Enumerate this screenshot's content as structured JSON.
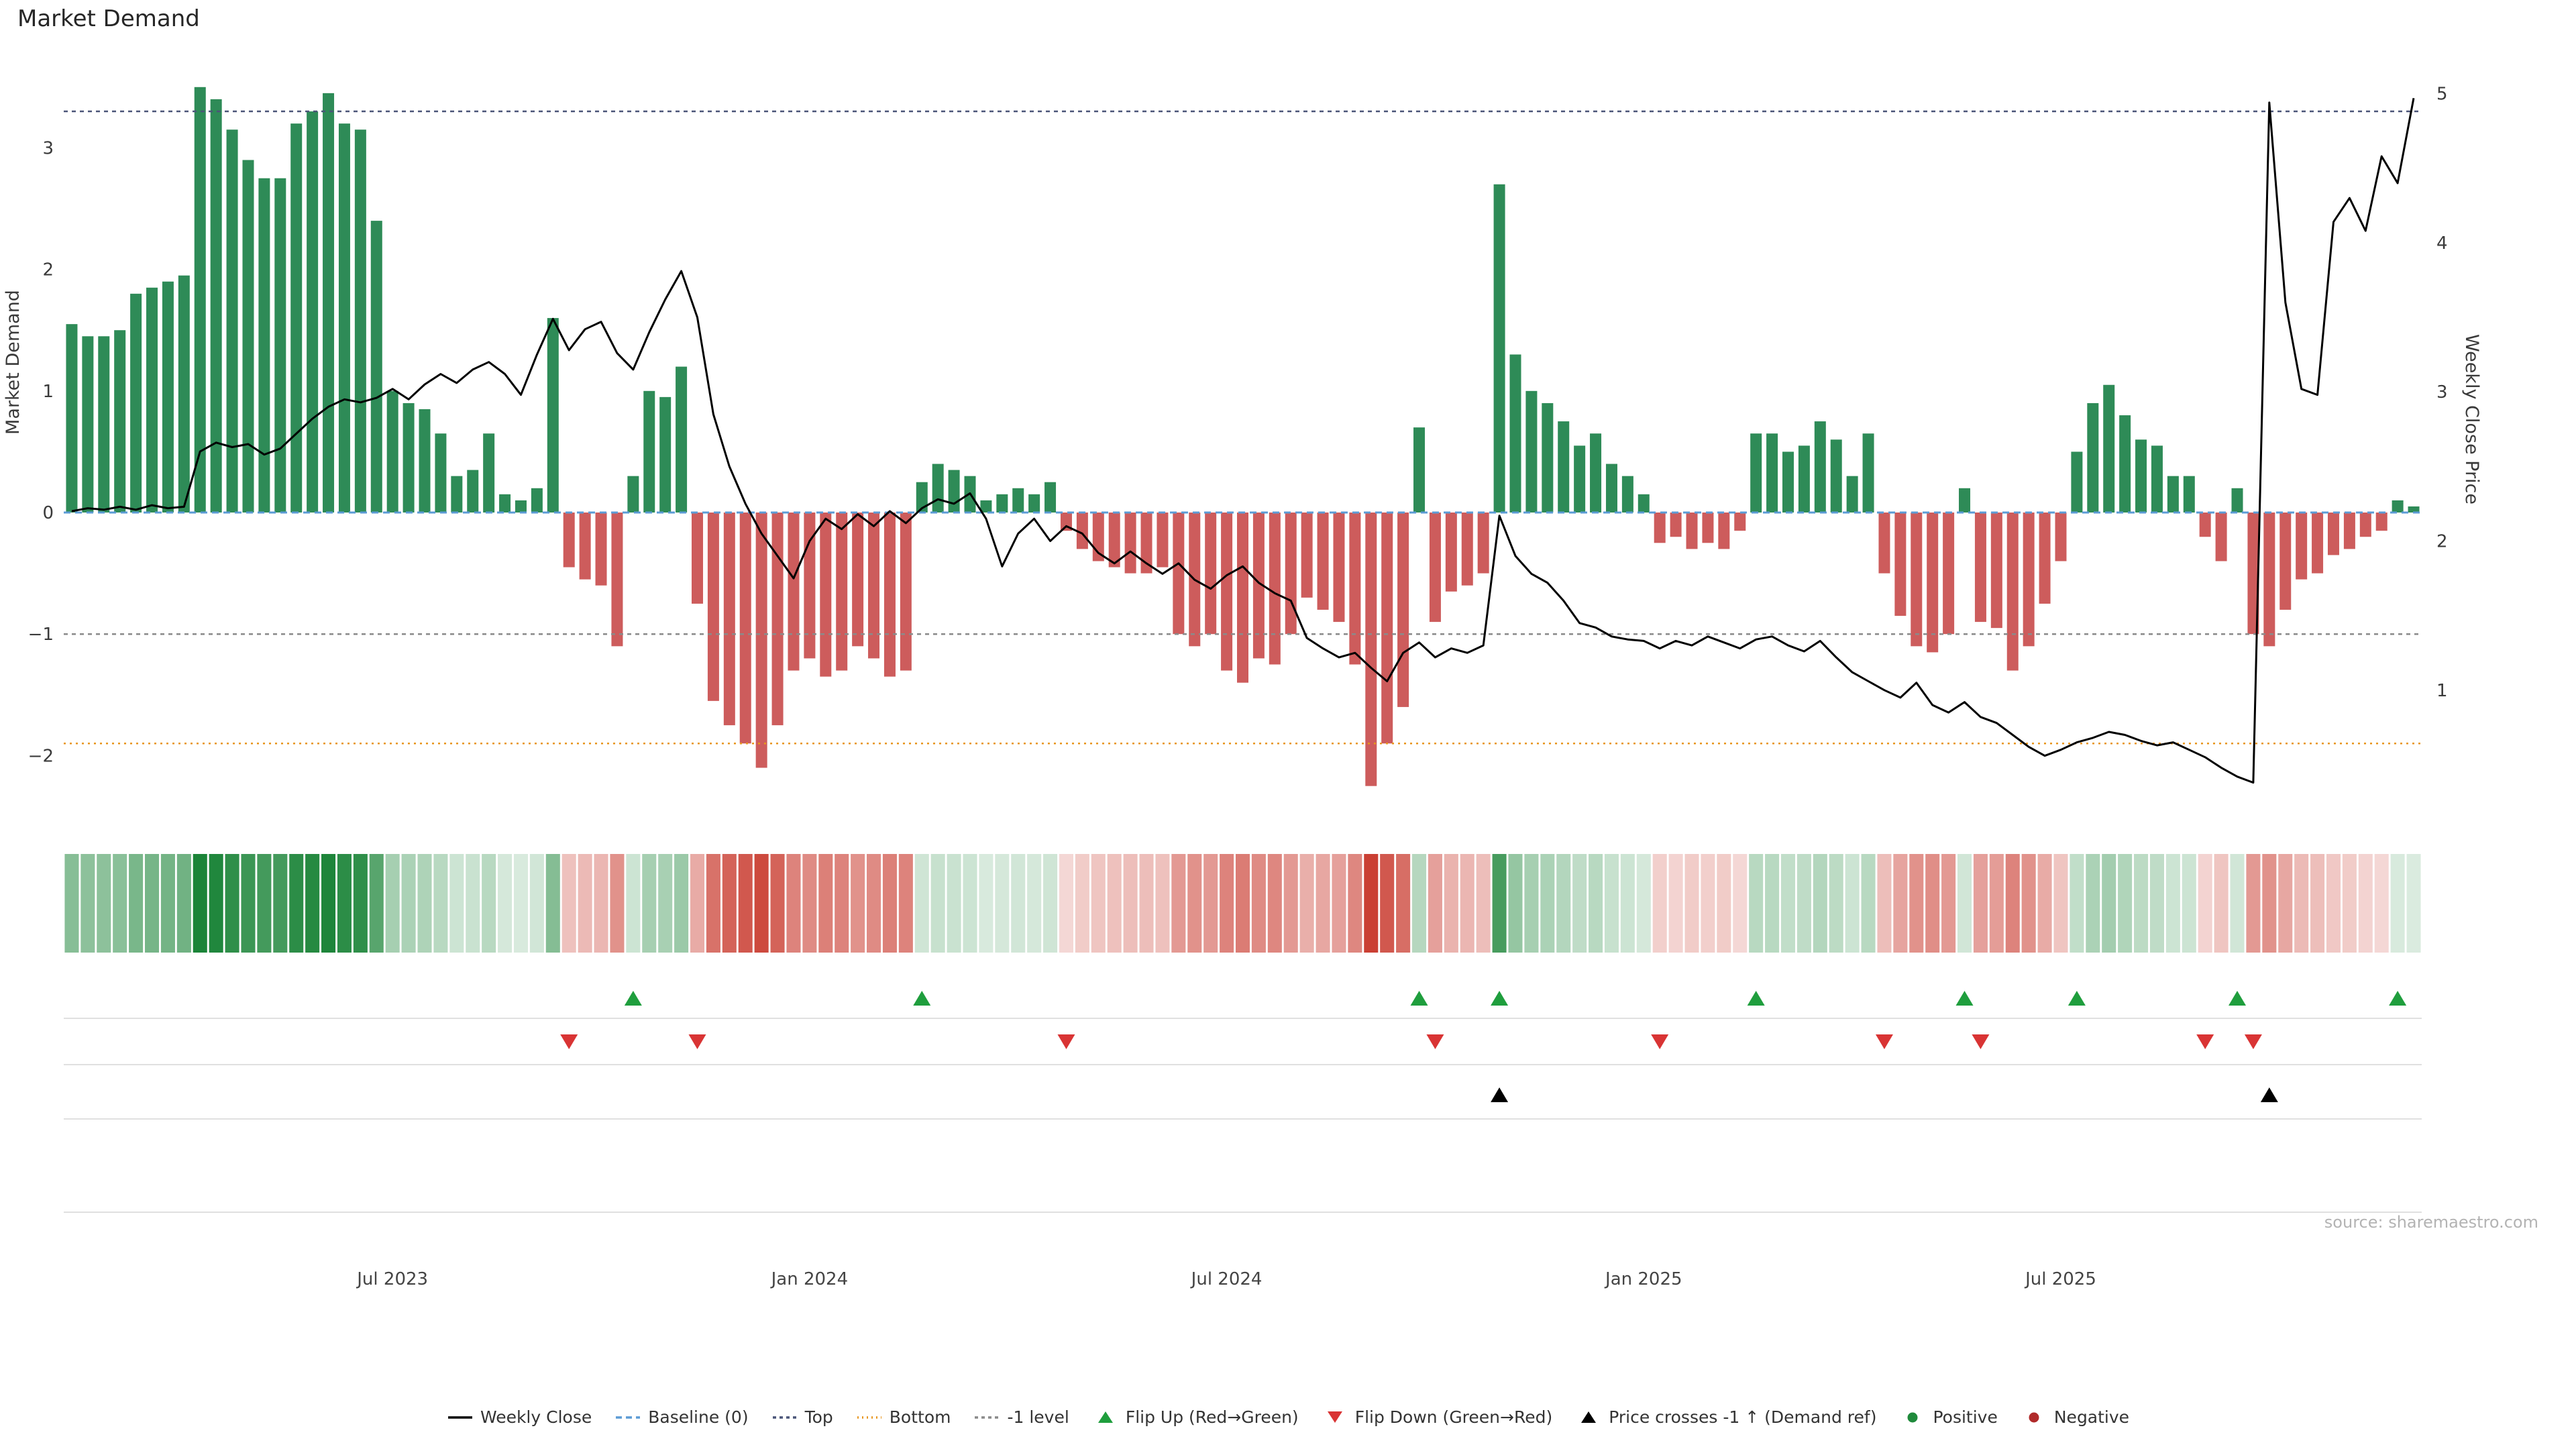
{
  "title": "Market Demand",
  "source_text": "source: sharemaestro.com",
  "axes": {
    "left_label": "Market Demand",
    "right_label": "Weekly Close Price",
    "left_ticks": [
      3,
      2,
      1,
      0,
      -1,
      -2
    ],
    "right_ticks": [
      5,
      4,
      3,
      2,
      1
    ],
    "x_tick_labels": [
      "Jul 2023",
      "Jan 2024",
      "Jul 2024",
      "Jan 2025",
      "Jul 2025"
    ],
    "x_tick_indices": [
      20,
      46,
      72,
      98,
      124
    ]
  },
  "colors": {
    "bar_positive": "#2e8b57",
    "bar_negative": "#cd5c5c",
    "price_line": "#000000",
    "baseline": "#5b9bd5",
    "top_line": "#4a5578",
    "bottom_line": "#e8961e",
    "minus_one_line": "#8a8a8a",
    "flip_up": "#1f9e3d",
    "flip_down": "#d93434",
    "price_cross": "#000000",
    "heat_pos_rgb": "27,132,56",
    "heat_neg_rgb": "201,59,47"
  },
  "chart_data": {
    "type": "bar+line",
    "x_unit": "weeks",
    "n_points": 147,
    "left_axis": {
      "label": "Market Demand",
      "ticks": [
        3,
        2,
        1,
        0,
        -1,
        -2
      ],
      "range": [
        -2.6,
        3.72
      ]
    },
    "right_axis": {
      "label": "Weekly Close Price",
      "ticks": [
        5,
        4,
        3,
        2,
        1
      ],
      "range": [
        0.0,
        5.05
      ]
    },
    "ref_lines": [
      {
        "name": "baseline",
        "label": "Baseline (0)",
        "value": 0,
        "axis": "left",
        "style": "dashed",
        "color": "#5b9bd5"
      },
      {
        "name": "top",
        "label": "Top",
        "value": 3.3,
        "axis": "left",
        "style": "dashed",
        "color": "#4a5578"
      },
      {
        "name": "bottom",
        "label": "Bottom",
        "value": -1.9,
        "axis": "left",
        "style": "dotted",
        "color": "#e8961e"
      },
      {
        "name": "minus_one",
        "label": "-1 level",
        "value": -1,
        "axis": "left",
        "style": "dashed",
        "color": "#8a8a8a"
      }
    ],
    "series": [
      {
        "name": "Market Demand",
        "type": "bar",
        "axis": "left",
        "values": [
          1.55,
          1.45,
          1.45,
          1.5,
          1.8,
          1.85,
          1.9,
          1.95,
          3.5,
          3.4,
          3.15,
          2.9,
          2.75,
          2.75,
          3.2,
          3.3,
          3.45,
          3.2,
          3.15,
          2.4,
          1.0,
          0.9,
          0.85,
          0.65,
          0.3,
          0.35,
          0.65,
          0.15,
          0.1,
          0.2,
          1.6,
          -0.45,
          -0.55,
          -0.6,
          -1.1,
          0.3,
          1.0,
          0.95,
          1.2,
          -0.75,
          -1.55,
          -1.75,
          -1.9,
          -2.1,
          -1.75,
          -1.3,
          -1.2,
          -1.35,
          -1.3,
          -1.1,
          -1.2,
          -1.35,
          -1.3,
          0.25,
          0.4,
          0.35,
          0.3,
          0.1,
          0.15,
          0.2,
          0.15,
          0.25,
          -0.15,
          -0.3,
          -0.4,
          -0.45,
          -0.5,
          -0.5,
          -0.45,
          -1.0,
          -1.1,
          -1.0,
          -1.3,
          -1.4,
          -1.2,
          -1.25,
          -1.0,
          -0.7,
          -0.8,
          -0.9,
          -1.25,
          -2.25,
          -1.9,
          -1.6,
          0.7,
          -0.9,
          -0.65,
          -0.6,
          -0.5,
          2.7,
          1.3,
          1.0,
          0.9,
          0.75,
          0.55,
          0.65,
          0.4,
          0.3,
          0.15,
          -0.25,
          -0.2,
          -0.3,
          -0.25,
          -0.3,
          -0.15,
          0.65,
          0.65,
          0.5,
          0.55,
          0.75,
          0.6,
          0.3,
          0.65,
          -0.5,
          -0.85,
          -1.1,
          -1.15,
          -1.0,
          0.2,
          -0.9,
          -0.95,
          -1.3,
          -1.1,
          -0.75,
          -0.4,
          0.5,
          0.9,
          1.05,
          0.8,
          0.6,
          0.55,
          0.3,
          0.3,
          -0.2,
          -0.4,
          0.2,
          -1.0,
          -1.1,
          -0.8,
          -0.55,
          -0.5,
          -0.35,
          -0.3,
          -0.2,
          -0.15,
          0.1,
          0.05
        ]
      },
      {
        "name": "Weekly Close",
        "type": "line",
        "axis": "right",
        "values": [
          2.2,
          2.22,
          2.21,
          2.23,
          2.21,
          2.24,
          2.22,
          2.23,
          2.6,
          2.66,
          2.63,
          2.65,
          2.58,
          2.62,
          2.72,
          2.82,
          2.9,
          2.95,
          2.93,
          2.96,
          3.02,
          2.95,
          3.05,
          3.12,
          3.06,
          3.15,
          3.2,
          3.12,
          2.98,
          3.25,
          3.49,
          3.28,
          3.42,
          3.47,
          3.26,
          3.15,
          3.4,
          3.62,
          3.81,
          3.5,
          2.85,
          2.5,
          2.25,
          2.05,
          1.9,
          1.75,
          2.0,
          2.15,
          2.08,
          2.18,
          2.1,
          2.2,
          2.12,
          2.22,
          2.28,
          2.25,
          2.32,
          2.15,
          1.83,
          2.05,
          2.15,
          2.0,
          2.1,
          2.05,
          1.92,
          1.85,
          1.93,
          1.85,
          1.78,
          1.85,
          1.74,
          1.68,
          1.77,
          1.83,
          1.72,
          1.65,
          1.6,
          1.35,
          1.28,
          1.22,
          1.25,
          1.15,
          1.06,
          1.25,
          1.32,
          1.22,
          1.28,
          1.25,
          1.3,
          2.17,
          1.9,
          1.78,
          1.72,
          1.6,
          1.45,
          1.42,
          1.36,
          1.34,
          1.33,
          1.28,
          1.33,
          1.3,
          1.36,
          1.32,
          1.28,
          1.34,
          1.36,
          1.3,
          1.26,
          1.33,
          1.22,
          1.12,
          1.06,
          1.0,
          0.95,
          1.05,
          0.9,
          0.85,
          0.92,
          0.82,
          0.78,
          0.7,
          0.62,
          0.56,
          0.6,
          0.65,
          0.68,
          0.72,
          0.7,
          0.66,
          0.63,
          0.65,
          0.6,
          0.55,
          0.48,
          0.42,
          0.38,
          4.94,
          3.6,
          3.02,
          2.98,
          4.14,
          4.3,
          4.08,
          4.58,
          4.4,
          4.97
        ]
      }
    ],
    "markers": {
      "flip_up": {
        "label": "Flip Up (Red→Green)",
        "indices": [
          35,
          53,
          84,
          89,
          105,
          118,
          125,
          135,
          145
        ]
      },
      "flip_down": {
        "label": "Flip Down (Green→Red)",
        "indices": [
          31,
          39,
          62,
          85,
          99,
          113,
          119,
          133,
          136
        ]
      },
      "price_cross": {
        "label": "Price crosses -1 ↑ (Demand ref)",
        "indices": [
          89,
          137
        ]
      }
    },
    "heatmap_strip": "color intensity per week derived from Market Demand sign and magnitude"
  },
  "legend": [
    {
      "label": "Weekly Close",
      "type": "line",
      "color": "#000000",
      "dash": ""
    },
    {
      "label": "Baseline (0)",
      "type": "line",
      "color": "#5b9bd5",
      "dash": "9,6"
    },
    {
      "label": "Top",
      "type": "line",
      "color": "#4a5578",
      "dash": "5,5"
    },
    {
      "label": "Bottom",
      "type": "line",
      "color": "#e8961e",
      "dash": "2,5"
    },
    {
      "label": "-1 level",
      "type": "line",
      "color": "#8a8a8a",
      "dash": "5,5"
    },
    {
      "label": "Flip Up (Red→Green)",
      "type": "triangle-up",
      "color": "#1f9e3d"
    },
    {
      "label": "Flip Down (Green→Red)",
      "type": "triangle-down",
      "color": "#d93434"
    },
    {
      "label": "Price crosses -1 ↑ (Demand ref)",
      "type": "triangle-up",
      "color": "#000000"
    },
    {
      "label": "Positive",
      "type": "dot",
      "color": "#1f8a3b"
    },
    {
      "label": "Negative",
      "type": "dot",
      "color": "#b02a2a"
    }
  ]
}
